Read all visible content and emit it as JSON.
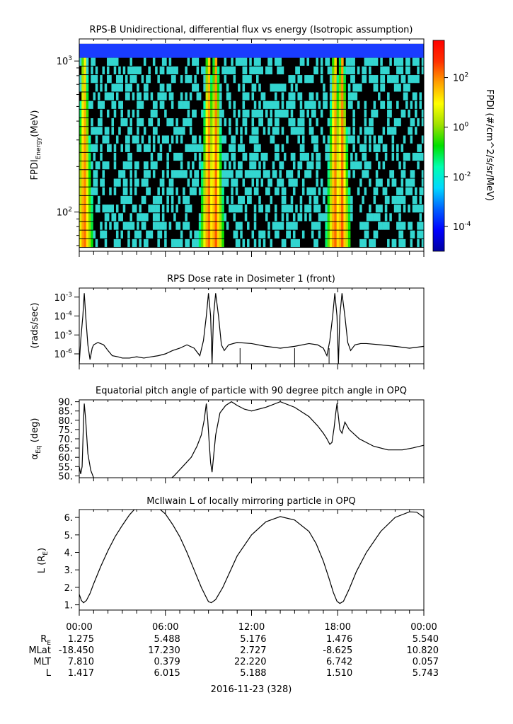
{
  "colors": {
    "frame": "#000000",
    "line": "#000000",
    "colorbar": [
      "#0000a0",
      "#0000ff",
      "#0060ff",
      "#00d8ff",
      "#00ffb0",
      "#00e000",
      "#a0e000",
      "#ffff00",
      "#ffa000",
      "#ff3000",
      "#ff0000"
    ],
    "spectro_bg": "#000000",
    "spectro_noise": "#33d6d0",
    "spectro_topband": "#1a3cff"
  },
  "chart_data": [
    {
      "id": "panel1",
      "type": "heatmap",
      "title": "RPS-B  Unidirectional, differential flux vs energy (Isotropic assumption)",
      "ylabel_main": "FPDI",
      "ylabel_sub": "Energy",
      "ylabel_unit": "(MeV)",
      "yscale": "log",
      "ylim": [
        55,
        1400
      ],
      "ytick_base": [
        "10",
        "10"
      ],
      "ytick_exp": [
        "3",
        "2"
      ],
      "ytick_values": [
        1000,
        100
      ],
      "xlim_hours": [
        0,
        24
      ],
      "colorbar_label": "FPDI (#/cm^2/s/sr/MeV)",
      "colorbar_scale": "log",
      "colorbar_exp_range": [
        -5,
        3.5
      ],
      "colorbar_tick_base": [
        "10",
        "10",
        "10",
        "10"
      ],
      "colorbar_tick_exp": [
        "2",
        "0",
        "-2",
        "-4"
      ],
      "colorbar_tick_values": [
        2,
        0,
        -2,
        -4
      ],
      "peaks_hours": [
        0.35,
        9.0,
        9.5,
        17.8,
        18.3
      ],
      "peak_log_flux": 2.5
    },
    {
      "id": "panel2",
      "type": "line",
      "title": "RPS  Dose rate in Dosimeter 1 (front)",
      "ylabel": "(rads/sec)",
      "yscale": "log",
      "ylim": [
        3e-07,
        0.003
      ],
      "ytick_base": [
        "10",
        "10",
        "10",
        "10"
      ],
      "ytick_exp": [
        "-3",
        "-4",
        "-5",
        "-6"
      ],
      "ytick_values": [
        -3,
        -4,
        -5,
        -6
      ],
      "x_hours": [
        0.0,
        0.1,
        0.25,
        0.35,
        0.45,
        0.6,
        0.75,
        0.9,
        1.0,
        1.3,
        1.7,
        2.0,
        2.3,
        2.7,
        3.0,
        3.5,
        4.0,
        4.5,
        5.0,
        5.5,
        6.0,
        6.5,
        7.0,
        7.5,
        8.0,
        8.4,
        8.65,
        8.85,
        9.0,
        9.15,
        9.25,
        9.35,
        9.5,
        9.7,
        9.9,
        10.1,
        10.4,
        11.0,
        12.0,
        13.0,
        14.0,
        15.0,
        16.0,
        16.6,
        17.0,
        17.25,
        17.45,
        17.65,
        17.8,
        17.95,
        18.05,
        18.15,
        18.3,
        18.5,
        18.7,
        18.9,
        19.2,
        19.6,
        20.0,
        21.0,
        22.0,
        23.0,
        24.0
      ],
      "y_values": [
        3e-07,
        5e-06,
        0.0001,
        0.0016,
        0.0001,
        3e-06,
        5e-07,
        2e-06,
        3e-06,
        4e-06,
        3e-06,
        1.5e-06,
        8e-07,
        7e-07,
        6e-07,
        6e-07,
        7e-07,
        6e-07,
        7e-07,
        8e-07,
        1e-06,
        1.5e-06,
        2e-06,
        3e-06,
        2e-06,
        8e-07,
        5e-06,
        0.0001,
        0.0016,
        0.0001,
        3e-07,
        0.0001,
        0.0016,
        0.0001,
        3e-06,
        1.5e-06,
        3e-06,
        4e-06,
        3.5e-06,
        2.5e-06,
        2e-06,
        2.5e-06,
        3.5e-06,
        3e-06,
        2e-06,
        8e-07,
        5e-06,
        0.0001,
        0.0016,
        0.0001,
        3e-07,
        0.0001,
        0.0016,
        0.0001,
        4e-06,
        1.5e-06,
        3e-06,
        3.5e-06,
        3.5e-06,
        3e-06,
        2.5e-06,
        2e-06,
        2.5e-06
      ],
      "spikes_hours": [
        11.2,
        15.0,
        17.4
      ]
    },
    {
      "id": "panel3",
      "type": "line",
      "title": "Equatorial pitch angle of particle with 90 degree pitch angle in OPQ",
      "ylabel_main": "α",
      "ylabel_sub": "Eq",
      "ylabel_unit": " (deg)",
      "ylim": [
        49,
        91
      ],
      "ytick_labels": [
        "90.",
        "85.",
        "80.",
        "75.",
        "70.",
        "65.",
        "60.",
        "55.",
        "50."
      ],
      "ytick_values": [
        90,
        85,
        80,
        75,
        70,
        65,
        60,
        55,
        50
      ],
      "x_hours": [
        0.0,
        0.1,
        0.2,
        0.3,
        0.35,
        0.45,
        0.6,
        0.8,
        1.0,
        1.2,
        1.4,
        6.0,
        6.6,
        7.2,
        7.8,
        8.2,
        8.5,
        8.7,
        8.85,
        8.95,
        9.05,
        9.15,
        9.25,
        9.35,
        9.5,
        9.8,
        10.2,
        10.6,
        11.0,
        11.5,
        12.0,
        13.0,
        14.0,
        15.0,
        16.0,
        16.6,
        17.0,
        17.25,
        17.45,
        17.6,
        17.75,
        17.85,
        17.95,
        18.05,
        18.15,
        18.3,
        18.5,
        18.8,
        19.5,
        20.5,
        21.5,
        22.5,
        23.2,
        24.0
      ],
      "y_values": [
        55,
        51,
        55,
        80,
        89,
        80,
        62,
        53,
        49,
        47,
        46,
        46,
        50,
        55,
        60,
        66,
        72,
        80,
        89,
        80,
        68,
        57,
        52,
        60,
        72,
        84,
        88,
        90,
        88,
        86,
        85,
        87,
        90,
        87,
        82,
        77,
        73,
        70,
        67,
        68,
        76,
        83,
        89,
        82,
        75,
        73,
        79,
        75,
        70,
        66,
        64,
        64,
        65,
        66.5
      ]
    },
    {
      "id": "panel4",
      "type": "line",
      "title": "McIlwain L of locally mirroring particle in OPQ",
      "ylabel_main": "L (R",
      "ylabel_sub": "E",
      "ylabel_unit": ")",
      "ylim": [
        0.7,
        6.45
      ],
      "ytick_labels": [
        "6.",
        "5.",
        "4.",
        "3.",
        "2.",
        "1."
      ],
      "ytick_values": [
        6,
        5,
        4,
        3,
        2,
        1
      ],
      "x_hours": [
        0.0,
        0.15,
        0.3,
        0.5,
        0.75,
        1.0,
        1.5,
        2.0,
        2.5,
        3.0,
        3.5,
        4.0,
        4.5,
        5.0,
        5.5,
        6.0,
        6.5,
        7.0,
        7.5,
        8.0,
        8.5,
        8.8,
        9.0,
        9.2,
        9.5,
        10.0,
        10.5,
        11.0,
        12.0,
        13.0,
        14.0,
        15.0,
        16.0,
        16.5,
        17.0,
        17.4,
        17.7,
        17.95,
        18.15,
        18.4,
        18.8,
        19.3,
        20.0,
        21.0,
        22.0,
        23.0,
        23.5,
        24.0
      ],
      "y_values": [
        1.6,
        1.25,
        1.12,
        1.25,
        1.65,
        2.2,
        3.2,
        4.1,
        4.9,
        5.55,
        6.15,
        6.6,
        6.9,
        6.8,
        6.55,
        6.2,
        5.6,
        4.9,
        4.0,
        3.0,
        2.0,
        1.5,
        1.18,
        1.12,
        1.3,
        2.0,
        2.9,
        3.8,
        5.0,
        5.75,
        6.05,
        5.85,
        5.2,
        4.5,
        3.5,
        2.5,
        1.7,
        1.2,
        1.08,
        1.2,
        1.9,
        2.9,
        4.0,
        5.2,
        6.0,
        6.32,
        6.3,
        6.0
      ]
    }
  ],
  "time_axis": {
    "tick_labels": [
      "00:00",
      "06:00",
      "12:00",
      "18:00",
      "00:00"
    ],
    "tick_hours": [
      0,
      6,
      12,
      18,
      24
    ],
    "minor_hours": [
      1,
      2,
      3,
      4,
      5,
      7,
      8,
      9,
      10,
      11,
      13,
      14,
      15,
      16,
      17,
      19,
      20,
      21,
      22,
      23
    ]
  },
  "ephemeris": {
    "row_labels": [
      {
        "main": "R",
        "sub": "E"
      },
      {
        "main": "MLat",
        "sub": ""
      },
      {
        "main": "MLT",
        "sub": ""
      },
      {
        "main": "L",
        "sub": ""
      }
    ],
    "rows": [
      [
        "1.275",
        "5.488",
        "5.176",
        "1.476",
        "5.540"
      ],
      [
        "-18.450",
        "17.230",
        "2.727",
        "-8.625",
        "10.820"
      ],
      [
        "7.810",
        "0.379",
        "22.220",
        "6.742",
        "0.057"
      ],
      [
        "1.417",
        "6.015",
        "5.188",
        "1.510",
        "5.743"
      ]
    ]
  },
  "date_label": "2016-11-23 (328)"
}
